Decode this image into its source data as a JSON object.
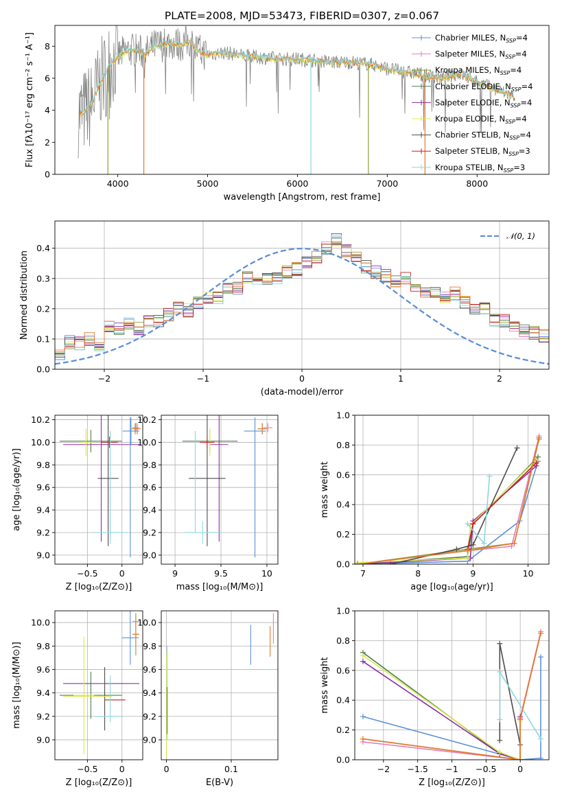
{
  "title": "PLATE=2008, MJD=53473, FIBERID=0307, z=0.067",
  "colors": {
    "Chabrier MILES": "#5b8fd9",
    "Salpeter MILES": "#e07fb7",
    "Kroupa MILES": "#8f9d3a",
    "Chabrier ELODIE": "#4e7f4e",
    "Salpeter ELODIE": "#8b2da8",
    "Kroupa ELODIE": "#dce84a",
    "Chabrier STELIB": "#4b4b4b",
    "Salpeter STELIB": "#c01f1f",
    "Kroupa STELIB": "#8ed6dd",
    "data": "#808080",
    "fit": "#7ed7df",
    "orange": "#e8772e",
    "gauss": "#5b8fd9"
  },
  "chart_data": [
    {
      "id": "spectrum",
      "type": "line",
      "title": "PLATE=2008, MJD=53473, FIBERID=0307, z=0.067",
      "xlabel": "wavelength [Angstrom, rest frame]",
      "ylabel": "Flux [fλ10⁻¹⁷ erg cm⁻² s⁻¹ A⁻¹]",
      "xlim": [
        3300,
        8800
      ],
      "ylim": [
        0,
        9.3
      ],
      "xticks": [
        4000,
        5000,
        6000,
        7000,
        8000
      ],
      "yticks": [
        0,
        2,
        4,
        6,
        8
      ],
      "grid": false,
      "legend_loc": "upper right",
      "legend": [
        {
          "label": "Chabrier MILES, N",
          "sub": "SSP",
          "tail": "=4"
        },
        {
          "label": "Salpeter MILES, N",
          "sub": "SSP",
          "tail": "=4"
        },
        {
          "label": "Kroupa MILES, N",
          "sub": "SSP",
          "tail": "=4"
        },
        {
          "label": "Chabrier ELODIE, N",
          "sub": "SSP",
          "tail": "=4"
        },
        {
          "label": "Salpeter ELODIE, N",
          "sub": "SSP",
          "tail": "=4"
        },
        {
          "label": "Kroupa ELODIE, N",
          "sub": "SSP",
          "tail": "=4"
        },
        {
          "label": "Chabrier STELIB, N",
          "sub": "SSP",
          "tail": "=4"
        },
        {
          "label": "Salpeter STELIB, N",
          "sub": "SSP",
          "tail": "=3"
        },
        {
          "label": "Kroupa STELIB, N",
          "sub": "SSP",
          "tail": "=3"
        }
      ],
      "continuum": {
        "x": [
          3600,
          3700,
          3800,
          3900,
          4000,
          4100,
          4200,
          4300,
          4400,
          4500,
          4600,
          4700,
          4800,
          4900,
          5000,
          5200,
          5400,
          5600,
          5800,
          6000,
          6200,
          6400,
          6600,
          6800,
          7000,
          7200,
          7400,
          7600,
          7800,
          8000,
          8200,
          8400
        ],
        "y": [
          3.8,
          4.3,
          5.6,
          6.7,
          7.4,
          7.7,
          7.8,
          7.5,
          8.0,
          8.1,
          8.2,
          8.1,
          8.3,
          7.7,
          7.5,
          7.6,
          7.4,
          7.3,
          7.2,
          7.2,
          7.1,
          7.0,
          7.0,
          6.9,
          6.6,
          6.4,
          6.2,
          6.0,
          6.3,
          5.8,
          5.3,
          4.9
        ]
      }
    },
    {
      "id": "residuals",
      "type": "line",
      "xlabel": "(data-model)/error",
      "ylabel": "Normed distribution",
      "xlim": [
        -2.5,
        2.5
      ],
      "ylim": [
        0,
        0.49
      ],
      "xticks": [
        -2,
        -1,
        0,
        1,
        2
      ],
      "yticks": [
        0.0,
        0.1,
        0.2,
        0.3,
        0.4
      ],
      "grid": true,
      "legend": "𝒩(0, 1)",
      "legend_loc": "upper right",
      "bin_width": 0.1,
      "hist": [
        0.03,
        0.035,
        0.045,
        0.05,
        0.065,
        0.045,
        0.09,
        0.085,
        0.1,
        0.08,
        0.14,
        0.135,
        0.15,
        0.135,
        0.16,
        0.16,
        0.18,
        0.205,
        0.195,
        0.22,
        0.235,
        0.235,
        0.27,
        0.27,
        0.3,
        0.29,
        0.3,
        0.3,
        0.32,
        0.33,
        0.35,
        0.37,
        0.4,
        0.43,
        0.39,
        0.37,
        0.34,
        0.32,
        0.31,
        0.29,
        0.3,
        0.26,
        0.26,
        0.25,
        0.24,
        0.25,
        0.22,
        0.2,
        0.2,
        0.16,
        0.16,
        0.14,
        0.13,
        0.12,
        0.11,
        0.095,
        0.08,
        0.07,
        0.065,
        0.06,
        0.055,
        0.05,
        0.045,
        0.04,
        0.04,
        0.035,
        0.03,
        0.03,
        0.025,
        0.02
      ]
    },
    {
      "id": "age-vs-Z",
      "type": "scatter",
      "xlabel": "Z [log₁₀(Z/Z⊙)]",
      "ylabel": "age  [log₁₀(age/yr)]",
      "xlim": [
        -0.97,
        0.3
      ],
      "ylim": [
        8.92,
        10.24
      ],
      "xticks": [
        -0.5,
        0.0
      ],
      "yticks": [
        9.0,
        9.2,
        9.4,
        9.6,
        9.8,
        10.0,
        10.2
      ],
      "grid": true,
      "points": [
        {
          "series": "Chabrier MILES",
          "x": 0.13,
          "y": 10.1,
          "xerr": 0.12,
          "yerr": 0.12
        },
        {
          "series": "Salpeter MILES",
          "x": 0.2,
          "y": 10.13,
          "xerr": 0.05,
          "yerr": 0.04
        },
        {
          "series": "Kroupa MILES",
          "x": 0.19,
          "y": 10.12,
          "xerr": 0.05,
          "yerr": 0.05
        },
        {
          "series": "Chabrier ELODIE",
          "x": -0.45,
          "y": 10.01,
          "xerr": 0.45,
          "yerr": 0.1
        },
        {
          "series": "Salpeter ELODIE",
          "x": -0.3,
          "y": 9.98,
          "xerr": 0.55,
          "yerr": 0.86
        },
        {
          "series": "Kroupa ELODIE",
          "x": -0.52,
          "y": 10.0,
          "xerr": 0.1,
          "yerr": 0.12
        },
        {
          "series": "Chabrier STELIB",
          "x": -0.2,
          "y": 9.68,
          "xerr": 0.15,
          "yerr": 0.6
        },
        {
          "series": "Salpeter STELIB",
          "x": -0.18,
          "y": 10.0,
          "xerr": 0.12,
          "yerr": 0.05
        },
        {
          "series": "Kroupa STELIB",
          "x": -0.17,
          "y": 9.2,
          "xerr": 0.25,
          "yerr": 0.1
        },
        {
          "series": "orange",
          "x": 0.22,
          "y": 10.12,
          "xerr": 0.05,
          "yerr": 0.05
        },
        {
          "series": "Chabrier MILES",
          "x": 0.12,
          "y": 9.6,
          "xerr": 0.0,
          "yerr": 0.62
        },
        {
          "series": "Kroupa STELIB",
          "x": -0.17,
          "y": 9.65,
          "xerr": 0.0,
          "yerr": 0.45
        }
      ]
    },
    {
      "id": "age-vs-mass",
      "type": "scatter",
      "xlabel": "mass [log₁₀(M/M⊙)]",
      "ylabel": "",
      "xlim": [
        8.85,
        10.12
      ],
      "ylim": [
        8.92,
        10.24
      ],
      "xticks": [
        9.0,
        9.5,
        10.0
      ],
      "yticks": [
        9.0,
        9.2,
        9.4,
        9.6,
        9.8,
        10.0,
        10.2
      ],
      "grid": true,
      "points": [
        {
          "series": "Chabrier MILES",
          "x": 9.87,
          "y": 9.6,
          "xerr": 0.0,
          "yerr": 0.62
        },
        {
          "series": "Chabrier MILES",
          "x": 9.87,
          "y": 10.1,
          "xerr": 0.12,
          "yerr": 0.0
        },
        {
          "series": "Salpeter MILES",
          "x": 10.01,
          "y": 10.13,
          "xerr": 0.05,
          "yerr": 0.04
        },
        {
          "series": "Kroupa MILES",
          "x": 9.95,
          "y": 10.12,
          "xerr": 0.05,
          "yerr": 0.05
        },
        {
          "series": "Chabrier ELODIE",
          "x": 9.38,
          "y": 10.01,
          "xerr": 0.3,
          "yerr": 0.1
        },
        {
          "series": "Salpeter ELODIE",
          "x": 9.48,
          "y": 9.98,
          "xerr": 0.1,
          "yerr": 0.86
        },
        {
          "series": "Kroupa ELODIE",
          "x": 9.38,
          "y": 10.0,
          "xerr": 0.08,
          "yerr": 0.12
        },
        {
          "series": "Chabrier STELIB",
          "x": 9.35,
          "y": 9.68,
          "xerr": 0.2,
          "yerr": 0.6
        },
        {
          "series": "Salpeter STELIB",
          "x": 9.35,
          "y": 10.0,
          "xerr": 0.08,
          "yerr": 0.05
        },
        {
          "series": "Kroupa STELIB",
          "x": 9.3,
          "y": 9.2,
          "xerr": 0.2,
          "yerr": 0.1
        },
        {
          "series": "Kroupa STELIB",
          "x": 9.22,
          "y": 9.65,
          "xerr": 0.0,
          "yerr": 0.45
        },
        {
          "series": "orange",
          "x": 9.95,
          "y": 10.12,
          "xerr": 0.05,
          "yerr": 0.05
        }
      ]
    },
    {
      "id": "massweight-vs-age",
      "type": "line",
      "xlabel": "age  [log₁₀(age/yr)]",
      "ylabel": "mass weight",
      "xlim": [
        6.85,
        10.38
      ],
      "ylim": [
        0,
        1.0
      ],
      "xticks": [
        7,
        8,
        9,
        10
      ],
      "yticks": [
        0.0,
        0.2,
        0.4,
        0.6,
        0.8,
        1.0
      ],
      "grid": true,
      "series": [
        {
          "name": "Chabrier MILES",
          "x": [
            6.9,
            8.9,
            9.85,
            10.18
          ],
          "y": [
            0.0,
            0.02,
            0.29,
            0.69
          ]
        },
        {
          "name": "Salpeter MILES",
          "x": [
            6.9,
            8.9,
            9.7,
            10.2
          ],
          "y": [
            0.0,
            0.09,
            0.12,
            0.86
          ]
        },
        {
          "name": "Kroupa MILES",
          "x": [
            6.9,
            8.9,
            9.75,
            10.2
          ],
          "y": [
            0.0,
            0.1,
            0.14,
            0.84
          ]
        },
        {
          "name": "Chabrier ELODIE",
          "x": [
            6.9,
            8.9,
            9.0,
            10.18
          ],
          "y": [
            0.0,
            0.05,
            0.27,
            0.72
          ]
        },
        {
          "name": "Salpeter ELODIE",
          "x": [
            6.9,
            8.95,
            9.0,
            10.15
          ],
          "y": [
            0.0,
            0.04,
            0.29,
            0.66
          ]
        },
        {
          "name": "Kroupa ELODIE",
          "x": [
            6.9,
            8.9,
            8.95,
            10.15
          ],
          "y": [
            0.01,
            0.04,
            0.26,
            0.7
          ]
        },
        {
          "name": "Chabrier STELIB",
          "x": [
            7.5,
            8.7,
            9.0,
            9.8
          ],
          "y": [
            0.0,
            0.1,
            0.13,
            0.78
          ]
        },
        {
          "name": "Salpeter STELIB",
          "x": [
            8.9,
            9.0,
            10.15
          ],
          "y": [
            0.1,
            0.27,
            0.68
          ]
        },
        {
          "name": "Kroupa STELIB",
          "x": [
            8.9,
            9.2,
            9.3
          ],
          "y": [
            0.27,
            0.14,
            0.59
          ]
        },
        {
          "name": "orange",
          "x": [
            6.9,
            8.9,
            9.75,
            10.2
          ],
          "y": [
            0.0,
            0.09,
            0.14,
            0.85
          ]
        }
      ]
    },
    {
      "id": "mass-vs-Z",
      "type": "scatter",
      "xlabel": "Z [log₁₀(Z/Z⊙)]",
      "ylabel": "mass [log₁₀(M/M⊙)]",
      "xlim": [
        -0.97,
        0.3
      ],
      "ylim": [
        8.83,
        10.1
      ],
      "xticks": [
        -0.5,
        0.0
      ],
      "yticks": [
        9.0,
        9.2,
        9.4,
        9.6,
        9.8,
        10.0
      ],
      "grid": true,
      "points": [
        {
          "series": "Chabrier MILES",
          "x": 0.12,
          "y": 9.87,
          "xerr": 0.12,
          "yerr": 0.23
        },
        {
          "series": "Salpeter MILES",
          "x": 0.2,
          "y": 10.01,
          "xerr": 0.05,
          "yerr": 0.07
        },
        {
          "series": "Kroupa MILES",
          "x": 0.2,
          "y": 9.9,
          "xerr": 0.05,
          "yerr": 0.18
        },
        {
          "series": "Chabrier ELODIE",
          "x": -0.45,
          "y": 9.38,
          "xerr": 0.45,
          "yerr": 0.2
        },
        {
          "series": "Salpeter ELODIE",
          "x": -0.3,
          "y": 9.48,
          "xerr": 0.55,
          "yerr": 0.0
        },
        {
          "series": "Kroupa ELODIE",
          "x": -0.55,
          "y": 9.38,
          "xerr": 0.15,
          "yerr": 0.5
        },
        {
          "series": "Chabrier STELIB",
          "x": -0.25,
          "y": 9.35,
          "xerr": 0.0,
          "yerr": 0.27
        },
        {
          "series": "Salpeter STELIB",
          "x": -0.1,
          "y": 9.34,
          "xerr": 0.15,
          "yerr": 0.0
        },
        {
          "series": "Kroupa STELIB",
          "x": -0.2,
          "y": 9.2,
          "xerr": 0.2,
          "yerr": 0.0
        },
        {
          "series": "Kroupa STELIB",
          "x": -0.17,
          "y": 9.35,
          "xerr": 0.0,
          "yerr": 0.2
        },
        {
          "series": "Kroupa ELODIE",
          "x": -0.5,
          "y": 9.37,
          "xerr": 0.35,
          "yerr": 0.0
        },
        {
          "series": "orange",
          "x": 0.2,
          "y": 9.9,
          "xerr": 0.05,
          "yerr": 0.1
        }
      ]
    },
    {
      "id": "mass-vs-EBV",
      "type": "scatter",
      "xlabel": "E(B-V)",
      "ylabel": "",
      "xlim": [
        -0.008,
        0.172
      ],
      "ylim": [
        8.83,
        10.1
      ],
      "xticks": [
        0.0,
        0.1
      ],
      "yticks": [
        9.0,
        9.2,
        9.4,
        9.6,
        9.8,
        10.0
      ],
      "grid": true,
      "points": [
        {
          "series": "Chabrier MILES",
          "x": 0.13,
          "y": 9.81,
          "xerr": 0.0,
          "yerr": 0.17
        },
        {
          "series": "Salpeter MILES",
          "x": 0.165,
          "y": 9.95,
          "xerr": 0.0,
          "yerr": 0.13
        },
        {
          "series": "orange",
          "x": 0.16,
          "y": 9.84,
          "xerr": 0.0,
          "yerr": 0.13
        },
        {
          "series": "Kroupa ELODIE",
          "x": 0.0,
          "y": 9.3,
          "xerr": 0.0,
          "yerr": 0.45
        },
        {
          "series": "Kroupa STELIB",
          "x": 0.001,
          "y": 9.4,
          "xerr": 0.0,
          "yerr": 0.4
        },
        {
          "series": "Chabrier ELODIE",
          "x": 0.001,
          "y": 9.25,
          "xerr": 0.0,
          "yerr": 0.2
        }
      ]
    },
    {
      "id": "massweight-vs-Z",
      "type": "line",
      "xlabel": "Z [log₁₀(Z/Z⊙)]",
      "ylabel": "mass weight",
      "xlim": [
        -2.42,
        0.42
      ],
      "ylim": [
        0,
        1.0
      ],
      "xticks": [
        -2.0,
        -1.5,
        -1.0,
        -0.5,
        0.0
      ],
      "yticks": [
        0.0,
        0.2,
        0.4,
        0.6,
        0.8,
        1.0
      ],
      "grid": true,
      "series": [
        {
          "name": "Chabrier MILES",
          "x": [
            -2.3,
            0.0,
            0.3,
            0.3
          ],
          "y": [
            0.29,
            0.0,
            0.01,
            0.69
          ]
        },
        {
          "name": "Salpeter MILES",
          "x": [
            -2.3,
            0.0,
            0.0,
            0.3
          ],
          "y": [
            0.12,
            0.0,
            0.28,
            0.86
          ]
        },
        {
          "name": "Kroupa MILES",
          "x": [
            -2.3,
            0.0,
            0.0,
            0.3
          ],
          "y": [
            0.14,
            0.0,
            0.27,
            0.85
          ]
        },
        {
          "name": "Chabrier ELODIE",
          "x": [
            -2.3,
            -0.3,
            0.0,
            0.0
          ],
          "y": [
            0.72,
            0.04,
            0.0,
            0.27
          ]
        },
        {
          "name": "Salpeter ELODIE",
          "x": [
            -2.3,
            -0.3,
            0.0,
            0.0
          ],
          "y": [
            0.66,
            0.04,
            0.0,
            0.29
          ]
        },
        {
          "name": "Kroupa ELODIE",
          "x": [
            -2.3,
            -0.3,
            0.0,
            0.0
          ],
          "y": [
            0.7,
            0.05,
            0.0,
            0.26
          ]
        },
        {
          "name": "Chabrier STELIB",
          "x": [
            -0.3,
            -0.3,
            0.0
          ],
          "y": [
            0.13,
            0.78,
            0.1
          ]
        },
        {
          "name": "Kroupa STELIB",
          "x": [
            -0.3,
            -0.3,
            0.3
          ],
          "y": [
            0.27,
            0.59,
            0.14
          ]
        },
        {
          "name": "orange",
          "x": [
            -2.3,
            0.0,
            0.0,
            0.3
          ],
          "y": [
            0.14,
            0.0,
            0.27,
            0.85
          ]
        }
      ]
    }
  ]
}
